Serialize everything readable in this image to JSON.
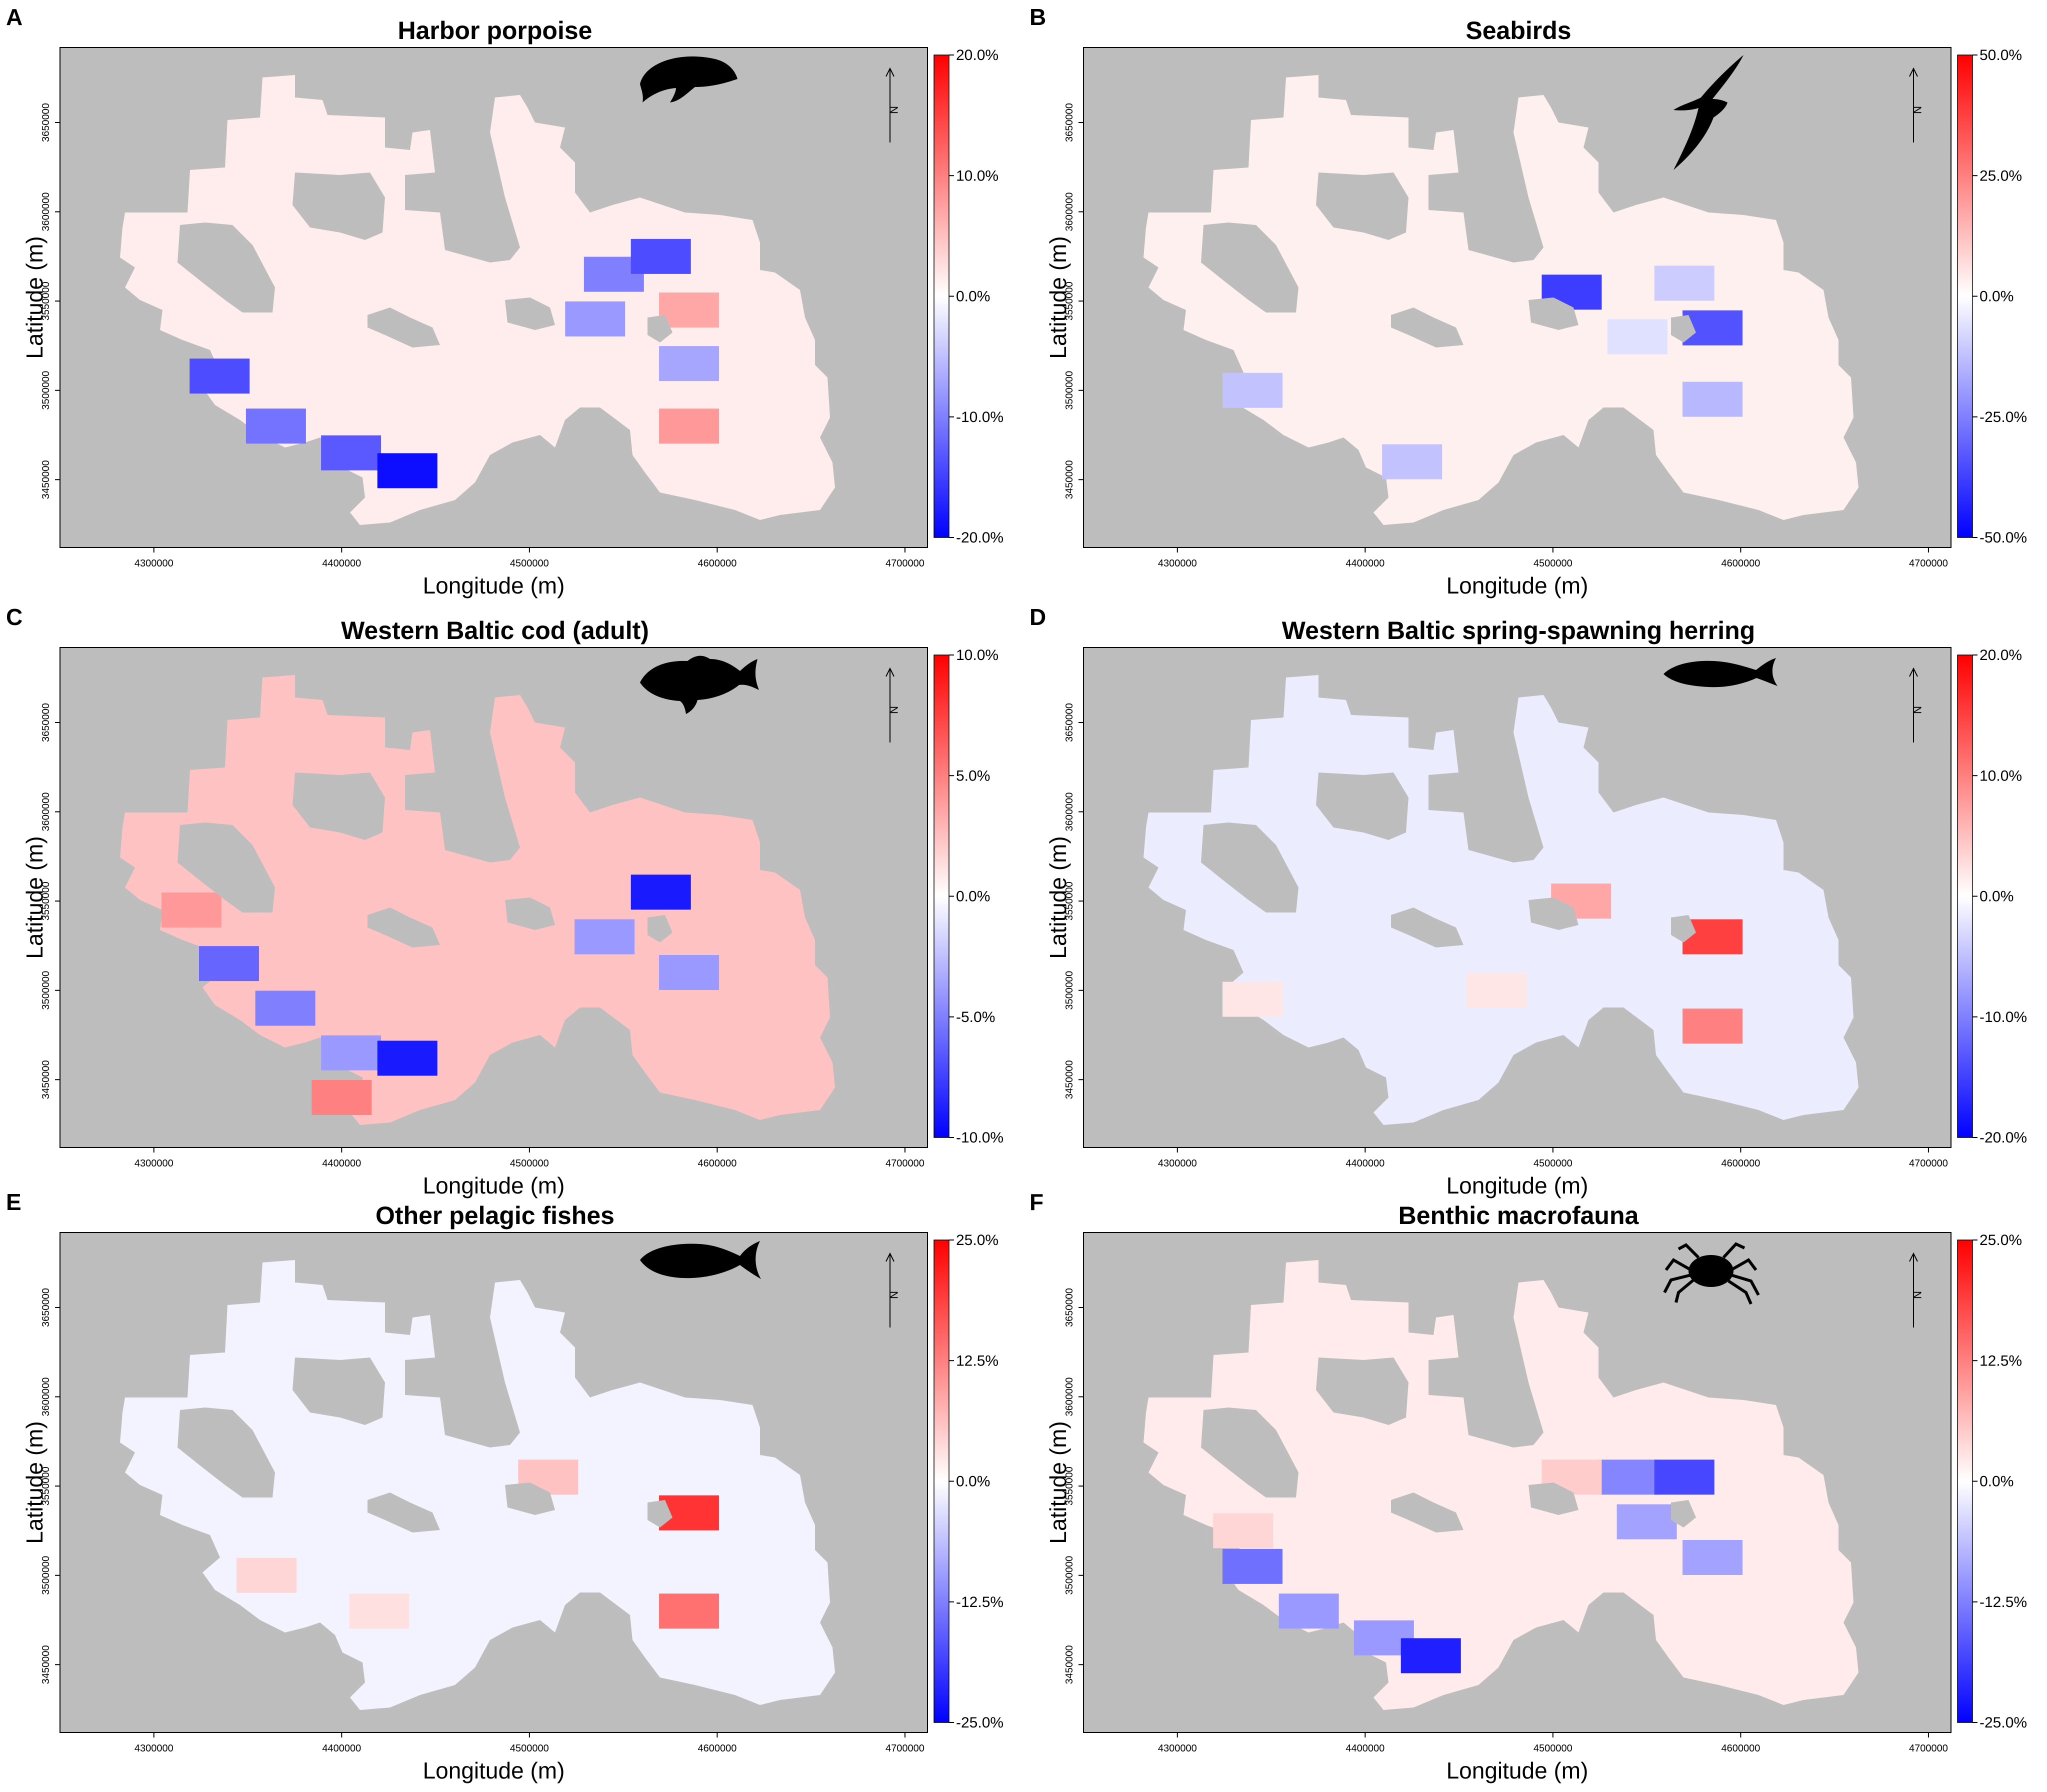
{
  "figure": {
    "colors": {
      "land": "#bdbdbd",
      "negative": "#0000ff",
      "zero": "#ffffff",
      "positive": "#ff0000",
      "frame": "#000000"
    },
    "north_arrow_label": "N",
    "x_axis_label": "Longitude (m)",
    "y_axis_label": "Latitude (m)",
    "x_ticks": [
      "4300000",
      "4400000",
      "4500000",
      "4600000",
      "4700000"
    ],
    "y_ticks": [
      "3450000",
      "3500000",
      "3550000",
      "3600000",
      "3650000"
    ],
    "panels": [
      {
        "label": "A",
        "title": "Harbor porpoise",
        "icon": "porpoise-icon",
        "colorbar_ticks": [
          "20.0%",
          "10.0%",
          "0.0%",
          "-10.0%",
          "-20.0%"
        ],
        "colorbar_range": [
          -20,
          20
        ],
        "background_change_pct": 1.5,
        "hotspots": [
          {
            "lon": 4335000,
            "lat": 3508000,
            "change_pct": -14
          },
          {
            "lon": 4365000,
            "lat": 3480000,
            "change_pct": -11
          },
          {
            "lon": 4405000,
            "lat": 3465000,
            "change_pct": -13
          },
          {
            "lon": 4435000,
            "lat": 3455000,
            "change_pct": -19
          },
          {
            "lon": 4545000,
            "lat": 3565000,
            "change_pct": -10
          },
          {
            "lon": 4570000,
            "lat": 3575000,
            "change_pct": -14
          },
          {
            "lon": 4535000,
            "lat": 3540000,
            "change_pct": -8
          },
          {
            "lon": 4585000,
            "lat": 3545000,
            "change_pct": 7
          },
          {
            "lon": 4585000,
            "lat": 3515000,
            "change_pct": -7
          },
          {
            "lon": 4585000,
            "lat": 3480000,
            "change_pct": 8
          }
        ]
      },
      {
        "label": "B",
        "title": "Seabirds",
        "icon": "seabird-icon",
        "colorbar_ticks": [
          "50.0%",
          "25.0%",
          "0.0%",
          "-25.0%",
          "-50.0%"
        ],
        "colorbar_range": [
          -50,
          50
        ],
        "background_change_pct": 3,
        "hotspots": [
          {
            "lon": 4510000,
            "lat": 3555000,
            "change_pct": -38
          },
          {
            "lon": 4570000,
            "lat": 3560000,
            "change_pct": -10
          },
          {
            "lon": 4585000,
            "lat": 3535000,
            "change_pct": -34
          },
          {
            "lon": 4585000,
            "lat": 3495000,
            "change_pct": -14
          },
          {
            "lon": 4340000,
            "lat": 3500000,
            "change_pct": -12
          },
          {
            "lon": 4425000,
            "lat": 3460000,
            "change_pct": -12
          },
          {
            "lon": 4545000,
            "lat": 3530000,
            "change_pct": -6
          }
        ]
      },
      {
        "label": "C",
        "title": "Western Baltic cod (adult)",
        "icon": "cod-icon",
        "colorbar_ticks": [
          "10.0%",
          "5.0%",
          "0.0%",
          "-5.0%",
          "-10.0%"
        ],
        "colorbar_range": [
          -10,
          10
        ],
        "background_change_pct": 2.4,
        "hotspots": [
          {
            "lon": 4340000,
            "lat": 3515000,
            "change_pct": -6
          },
          {
            "lon": 4370000,
            "lat": 3490000,
            "change_pct": -5
          },
          {
            "lon": 4405000,
            "lat": 3465000,
            "change_pct": -4
          },
          {
            "lon": 4435000,
            "lat": 3462000,
            "change_pct": -9
          },
          {
            "lon": 4570000,
            "lat": 3555000,
            "change_pct": -9
          },
          {
            "lon": 4540000,
            "lat": 3530000,
            "change_pct": -4
          },
          {
            "lon": 4585000,
            "lat": 3510000,
            "change_pct": -4
          },
          {
            "lon": 4400000,
            "lat": 3440000,
            "change_pct": 5
          },
          {
            "lon": 4320000,
            "lat": 3545000,
            "change_pct": 4
          }
        ]
      },
      {
        "label": "D",
        "title": "Western Baltic spring-spawning herring",
        "icon": "herring-icon",
        "colorbar_ticks": [
          "20.0%",
          "10.0%",
          "0.0%",
          "-10.0%",
          "-20.0%"
        ],
        "colorbar_range": [
          -20,
          20
        ],
        "background_change_pct": -1.5,
        "hotspots": [
          {
            "lon": 4515000,
            "lat": 3550000,
            "change_pct": 7
          },
          {
            "lon": 4585000,
            "lat": 3530000,
            "change_pct": 15
          },
          {
            "lon": 4585000,
            "lat": 3480000,
            "change_pct": 10
          },
          {
            "lon": 4340000,
            "lat": 3495000,
            "change_pct": 2
          },
          {
            "lon": 4470000,
            "lat": 3500000,
            "change_pct": 2
          }
        ]
      },
      {
        "label": "E",
        "title": "Other pelagic fishes",
        "icon": "mackerel-icon",
        "colorbar_ticks": [
          "25.0%",
          "12.5%",
          "0.0%",
          "-12.5%",
          "-25.0%"
        ],
        "colorbar_range": [
          -25,
          25
        ],
        "background_change_pct": -1.2,
        "hotspots": [
          {
            "lon": 4510000,
            "lat": 3555000,
            "change_pct": 6
          },
          {
            "lon": 4585000,
            "lat": 3535000,
            "change_pct": 20
          },
          {
            "lon": 4585000,
            "lat": 3480000,
            "change_pct": 14
          },
          {
            "lon": 4360000,
            "lat": 3500000,
            "change_pct": 4
          },
          {
            "lon": 4420000,
            "lat": 3480000,
            "change_pct": 3
          }
        ]
      },
      {
        "label": "F",
        "title": "Benthic macrofauna",
        "icon": "crab-icon",
        "colorbar_ticks": [
          "25.0%",
          "12.5%",
          "0.0%",
          "-12.5%",
          "-25.0%"
        ],
        "colorbar_range": [
          -25,
          25
        ],
        "background_change_pct": 2,
        "hotspots": [
          {
            "lon": 4340000,
            "lat": 3505000,
            "change_pct": -14
          },
          {
            "lon": 4370000,
            "lat": 3480000,
            "change_pct": -10
          },
          {
            "lon": 4410000,
            "lat": 3465000,
            "change_pct": -10
          },
          {
            "lon": 4435000,
            "lat": 3455000,
            "change_pct": -22
          },
          {
            "lon": 4540000,
            "lat": 3555000,
            "change_pct": -12
          },
          {
            "lon": 4570000,
            "lat": 3555000,
            "change_pct": -18
          },
          {
            "lon": 4550000,
            "lat": 3530000,
            "change_pct": -9
          },
          {
            "lon": 4585000,
            "lat": 3510000,
            "change_pct": -9
          },
          {
            "lon": 4510000,
            "lat": 3555000,
            "change_pct": 5
          },
          {
            "lon": 4335000,
            "lat": 3525000,
            "change_pct": 4
          }
        ]
      }
    ]
  }
}
